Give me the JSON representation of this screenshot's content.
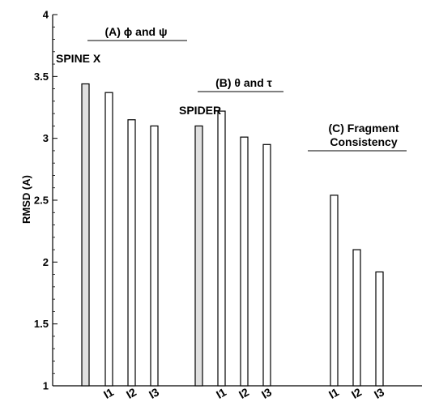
{
  "chart_data": {
    "type": "bar",
    "title": "",
    "xlabel": "",
    "ylabel": "RMSD (A)",
    "ylim": [
      1,
      4
    ],
    "yticks": [
      1,
      1.5,
      2,
      2.5,
      3,
      3.5,
      4
    ],
    "ytick_labels": [
      "1",
      "1.5",
      "2",
      "2.5",
      "3",
      "3.5",
      "4"
    ],
    "grid": false,
    "bar_colors": {
      "reference": "#e0e0e0",
      "iteration": "#ffffff",
      "edge": "#000000"
    },
    "groups": [
      {
        "label": "(A) ϕ and ψ",
        "reference": {
          "name": "SPINE X",
          "value": 3.44
        },
        "categories": [
          "I1",
          "I2",
          "I3"
        ],
        "values": [
          3.37,
          3.15,
          3.1
        ]
      },
      {
        "label": "(B) θ and τ",
        "reference": {
          "name": "SPIDER",
          "value": 3.1
        },
        "categories": [
          "I1",
          "I2",
          "I3"
        ],
        "values": [
          3.22,
          3.01,
          2.95
        ]
      },
      {
        "label": "(C) Fragment\nConsistency",
        "reference": null,
        "categories": [
          "I1",
          "I2",
          "I3"
        ],
        "values": [
          2.54,
          2.1,
          1.92
        ]
      }
    ]
  }
}
